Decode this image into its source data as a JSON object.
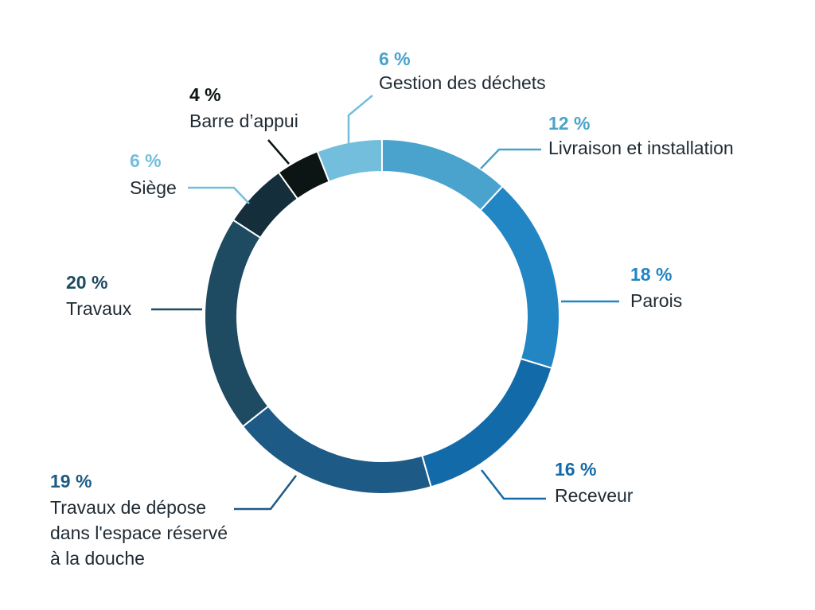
{
  "chart_data": {
    "type": "pie",
    "style": "donut",
    "title": "",
    "slices": [
      {
        "label": "Livraison et installation",
        "value": 12,
        "pct_text": "12 %",
        "color": "#4aa3cc"
      },
      {
        "label": "Parois",
        "value": 18,
        "pct_text": "18 %",
        "color": "#2186c3"
      },
      {
        "label": "Receveur",
        "value": 16,
        "pct_text": "16 %",
        "color": "#136aa8"
      },
      {
        "label": "Travaux de dépose\ndans l'espace réservé\nà la douche",
        "value": 19,
        "pct_text": "19 %",
        "color": "#1d5a85"
      },
      {
        "label": "Travaux",
        "value": 20,
        "pct_text": "20 %",
        "color": "#1e4a62"
      },
      {
        "label": "Siège",
        "value": 6,
        "pct_text": "6 %",
        "color": "#142e3c"
      },
      {
        "label": "Barre d’appui",
        "value": 4,
        "pct_text": "4 %",
        "color": "#0c1414"
      },
      {
        "label": "Gestion des déchets",
        "value": 6,
        "pct_text": "6 %",
        "color": "#73bedd"
      }
    ],
    "legend": "none"
  }
}
